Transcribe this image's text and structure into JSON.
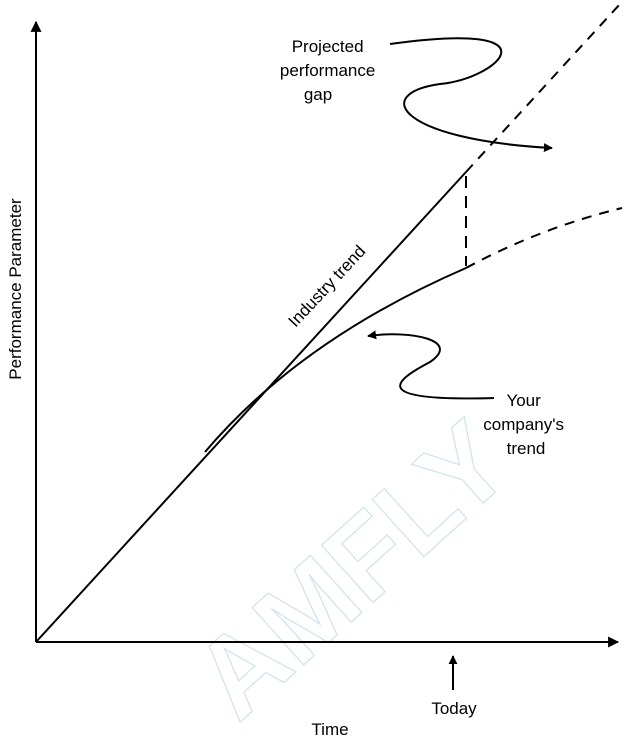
{
  "axes": {
    "y_label": "Performance Parameter",
    "x_label": "Time"
  },
  "marker": {
    "label": "Today"
  },
  "lines": {
    "industry": "Industry trend"
  },
  "annotations": {
    "gap": [
      "Projected",
      "performance",
      "gap"
    ],
    "company": [
      "Your",
      "company's",
      "trend"
    ]
  },
  "watermark": {
    "text": "AMFLY"
  },
  "colors": {
    "ink": "#000000",
    "watermark": "#cfe3ec",
    "background": "#ffffff"
  }
}
